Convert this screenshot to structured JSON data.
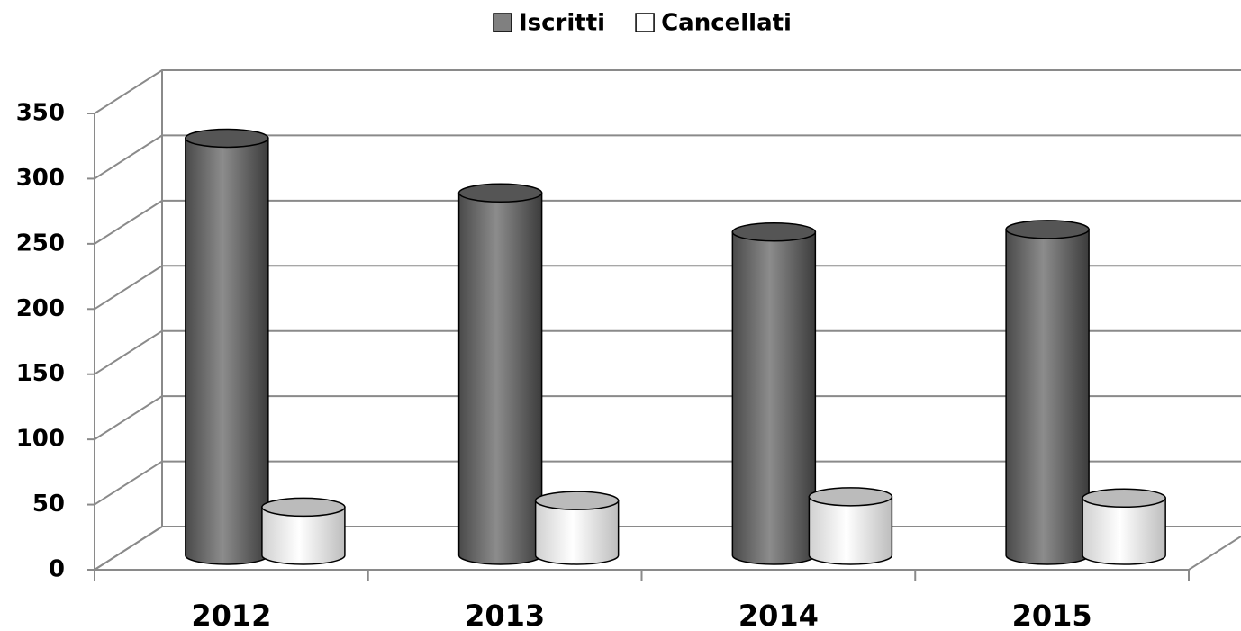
{
  "chart_data": {
    "type": "bar3d",
    "categories": [
      "2012",
      "2013",
      "2014",
      "2015"
    ],
    "series": [
      {
        "name": "Iscritti",
        "color": "#808080",
        "values": [
          320,
          278,
          248,
          250
        ]
      },
      {
        "name": "Cancellati",
        "color": "#ffffff",
        "values": [
          37,
          42,
          45,
          44
        ]
      }
    ],
    "ylim": [
      0,
      350
    ],
    "yticks": [
      0,
      50,
      100,
      150,
      200,
      250,
      300,
      350
    ],
    "grid": true,
    "legend": "top"
  }
}
